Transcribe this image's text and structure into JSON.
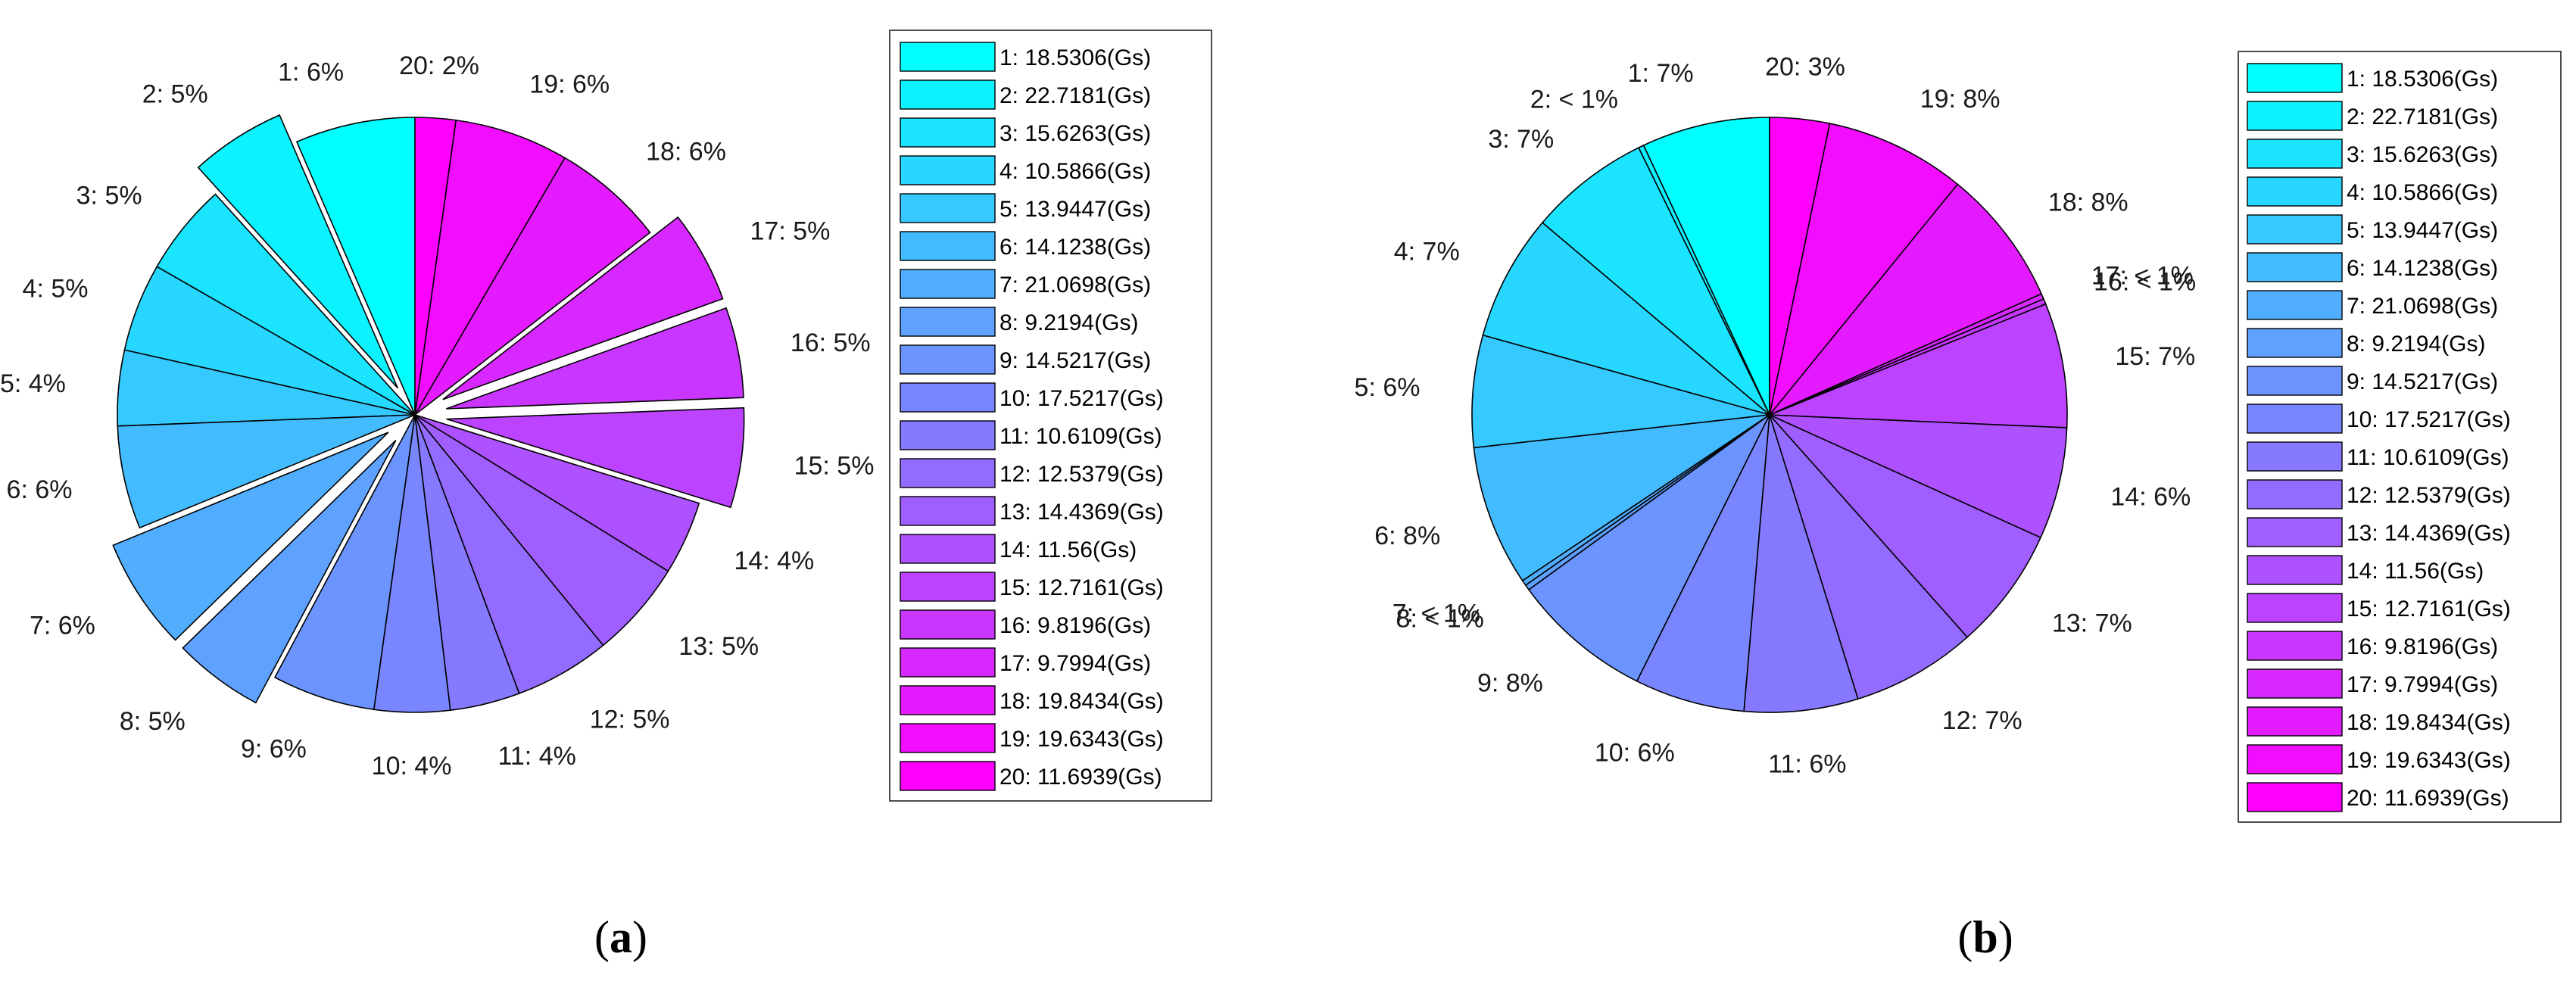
{
  "chart_data": [
    {
      "type": "pie",
      "categories": [
        "1",
        "2",
        "3",
        "4",
        "5",
        "6",
        "7",
        "8",
        "9",
        "10",
        "11",
        "12",
        "13",
        "14",
        "15",
        "16",
        "17",
        "18",
        "19",
        "20"
      ],
      "values": [
        6.5,
        5.2,
        5.0,
        4.8,
        4.1,
        5.6,
        6.1,
        4.9,
        5.6,
        4.1,
        3.8,
        5.2,
        5.3,
        4.0,
        5.4,
        4.9,
        5.0,
        6.1,
        6.2,
        2.2
      ],
      "slice_labels": [
        "1: 6%",
        "2: 5%",
        "3: 5%",
        "4: 5%",
        "5: 4%",
        "6: 6%",
        "7: 6%",
        "8: 5%",
        "9: 6%",
        "10: 4%",
        "11: 4%",
        "12: 5%",
        "13: 5%",
        "14: 4%",
        "15: 5%",
        "16: 5%",
        "17: 5%",
        "18: 6%",
        "19: 6%",
        "20: 2%"
      ],
      "exploded": [
        2,
        7,
        8,
        15,
        16,
        17
      ],
      "legend": [
        "1: 18.5306(Gs)",
        "2: 22.7181(Gs)",
        "3: 15.6263(Gs)",
        "4: 10.5866(Gs)",
        "5: 13.9447(Gs)",
        "6: 14.1238(Gs)",
        "7: 21.0698(Gs)",
        "8: 9.2194(Gs)",
        "9: 14.5217(Gs)",
        "10: 17.5217(Gs)",
        "11: 10.6109(Gs)",
        "12: 12.5379(Gs)",
        "13: 14.4369(Gs)",
        "14: 11.56(Gs)",
        "15: 12.7161(Gs)",
        "16: 9.8196(Gs)",
        "17: 9.7994(Gs)",
        "18: 19.8434(Gs)",
        "19: 19.6343(Gs)",
        "20: 11.6939(Gs)"
      ],
      "legend_placement": "right",
      "caption_letter": "a",
      "colormap": "cool"
    },
    {
      "type": "pie",
      "categories": [
        "1",
        "2",
        "3",
        "4",
        "5",
        "6",
        "7",
        "8",
        "9",
        "10",
        "11",
        "12",
        "13",
        "14",
        "15",
        "16",
        "17",
        "18",
        "19",
        "20"
      ],
      "values": [
        7.1,
        0.3,
        6.7,
        7.0,
        6.2,
        7.8,
        0.3,
        0.3,
        7.8,
        6.1,
        6.3,
        6.9,
        6.8,
        6.2,
        6.9,
        0.3,
        0.3,
        7.6,
        7.8,
        3.3
      ],
      "slice_labels": [
        "1: 7%",
        "2: < 1%",
        "3: 7%",
        "4: 7%",
        "5: 6%",
        "6: 8%",
        "7: < 1%",
        "8: < 1%",
        "9: 8%",
        "10: 6%",
        "11: 6%",
        "12: 7%",
        "13: 7%",
        "14: 6%",
        "15: 7%",
        "16: < 1%",
        "17: < 1%",
        "18: 8%",
        "19: 8%",
        "20: 3%"
      ],
      "exploded": [],
      "legend": [
        "1: 18.5306(Gs)",
        "2: 22.7181(Gs)",
        "3: 15.6263(Gs)",
        "4: 10.5866(Gs)",
        "5: 13.9447(Gs)",
        "6: 14.1238(Gs)",
        "7: 21.0698(Gs)",
        "8: 9.2194(Gs)",
        "9: 14.5217(Gs)",
        "10: 17.5217(Gs)",
        "11: 10.6109(Gs)",
        "12: 12.5379(Gs)",
        "13: 14.4369(Gs)",
        "14: 11.56(Gs)",
        "15: 12.7161(Gs)",
        "16: 9.8196(Gs)",
        "17: 9.7994(Gs)",
        "18: 19.8434(Gs)",
        "19: 19.6343(Gs)",
        "20: 11.6939(Gs)"
      ],
      "legend_placement": "right",
      "caption_letter": "b",
      "colormap": "cool"
    }
  ]
}
